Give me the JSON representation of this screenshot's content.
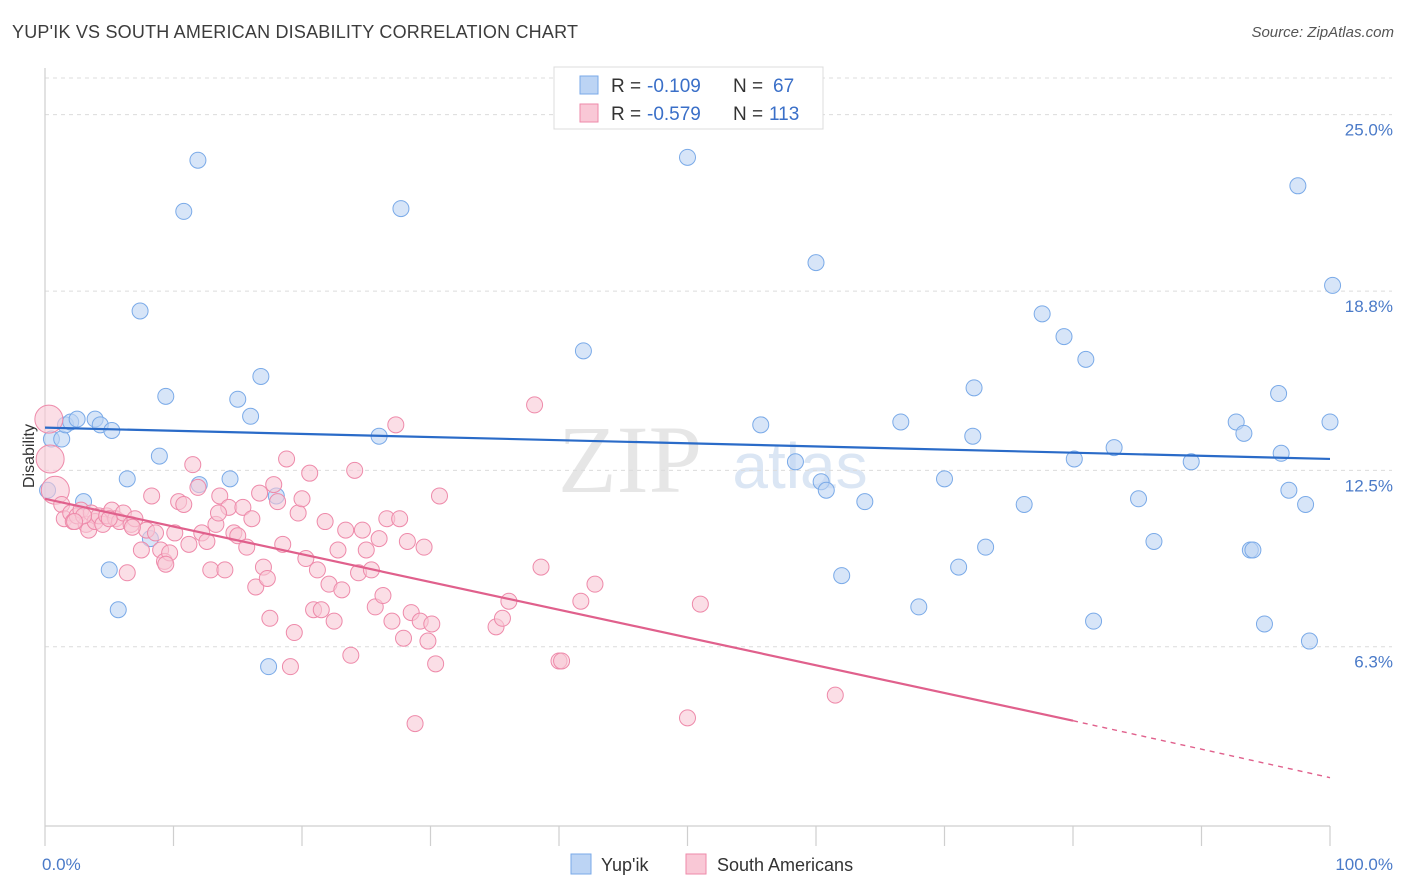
{
  "header": {
    "title": "YUP'IK VS SOUTH AMERICAN DISABILITY CORRELATION CHART",
    "source": "Source: ZipAtlas.com"
  },
  "watermark": {
    "zip": "ZIP",
    "atlas": "atlas"
  },
  "chart_data": {
    "type": "scatter",
    "title": "YUP'IK VS SOUTH AMERICAN DISABILITY CORRELATION CHART",
    "ylabel": "Disability",
    "xlabel": "",
    "xlim": [
      0,
      100
    ],
    "ylim": [
      0,
      26.5
    ],
    "x_tick_labels": [
      {
        "value": 0,
        "label": "0.0%"
      },
      {
        "value": 100,
        "label": "100.0%"
      }
    ],
    "y_tick_labels": [
      {
        "value": 6.3,
        "label": "6.3%"
      },
      {
        "value": 12.5,
        "label": "12.5%"
      },
      {
        "value": 18.8,
        "label": "18.8%"
      },
      {
        "value": 25.0,
        "label": "25.0%"
      }
    ],
    "grid": true,
    "legend_placement": "top-center",
    "series": [
      {
        "name": "Yup'ik",
        "color": "#7aaae8",
        "fill": "#bcd4f4",
        "R": "-0.109",
        "N": "67",
        "trend": {
          "x0": 0,
          "y0": 14.0,
          "x1": 100,
          "y1": 12.9
        },
        "points": [
          [
            0.2,
            11.8
          ],
          [
            0.5,
            13.6
          ],
          [
            1.3,
            13.6
          ],
          [
            1.6,
            14.1
          ],
          [
            2.0,
            14.2
          ],
          [
            2.5,
            14.3
          ],
          [
            3.0,
            11.4
          ],
          [
            3.9,
            14.3
          ],
          [
            4.3,
            14.1
          ],
          [
            5.2,
            13.9
          ],
          [
            5.0,
            9.0
          ],
          [
            5.7,
            7.6
          ],
          [
            6.4,
            12.2
          ],
          [
            7.4,
            18.1
          ],
          [
            8.2,
            10.1
          ],
          [
            8.9,
            13.0
          ],
          [
            9.4,
            15.1
          ],
          [
            10.8,
            21.6
          ],
          [
            11.9,
            23.4
          ],
          [
            12.0,
            12.0
          ],
          [
            14.4,
            12.2
          ],
          [
            15.0,
            15.0
          ],
          [
            16.0,
            14.4
          ],
          [
            16.8,
            15.8
          ],
          [
            17.4,
            5.6
          ],
          [
            18.0,
            11.6
          ],
          [
            26.0,
            13.7
          ],
          [
            27.7,
            21.7
          ],
          [
            41.9,
            16.7
          ],
          [
            50.0,
            23.5
          ],
          [
            55.7,
            14.1
          ],
          [
            58.4,
            12.8
          ],
          [
            60.0,
            19.8
          ],
          [
            60.4,
            12.1
          ],
          [
            60.8,
            11.8
          ],
          [
            62.0,
            8.8
          ],
          [
            63.8,
            11.4
          ],
          [
            66.6,
            14.2
          ],
          [
            68.0,
            7.7
          ],
          [
            70.0,
            12.2
          ],
          [
            71.1,
            9.1
          ],
          [
            72.3,
            15.4
          ],
          [
            72.2,
            13.7
          ],
          [
            73.2,
            9.8
          ],
          [
            76.2,
            11.3
          ],
          [
            77.6,
            18.0
          ],
          [
            79.3,
            17.2
          ],
          [
            80.1,
            12.9
          ],
          [
            81.0,
            16.4
          ],
          [
            81.6,
            7.2
          ],
          [
            83.2,
            13.3
          ],
          [
            85.1,
            11.5
          ],
          [
            86.3,
            10.0
          ],
          [
            89.2,
            12.8
          ],
          [
            92.7,
            14.2
          ],
          [
            93.3,
            13.8
          ],
          [
            93.8,
            9.7
          ],
          [
            94.0,
            9.7
          ],
          [
            94.9,
            7.1
          ],
          [
            96.0,
            15.2
          ],
          [
            96.2,
            13.1
          ],
          [
            96.8,
            11.8
          ],
          [
            97.5,
            22.5
          ],
          [
            98.1,
            11.3
          ],
          [
            98.4,
            6.5
          ],
          [
            100.0,
            14.2
          ],
          [
            100.2,
            19.0
          ]
        ]
      },
      {
        "name": "South Americans",
        "color": "#ee8aaa",
        "fill": "#f9c8d6",
        "R": "-0.579",
        "N": "113",
        "trend": {
          "x0": 0,
          "y0": 11.5,
          "x1": 80,
          "y1": 3.7,
          "dash_x1": 100,
          "dash_y1": 1.7
        },
        "points": [
          [
            0.3,
            14.3
          ],
          [
            0.4,
            12.9
          ],
          [
            0.8,
            11.8
          ],
          [
            1.3,
            11.3
          ],
          [
            1.5,
            10.8
          ],
          [
            2.0,
            11.0
          ],
          [
            2.2,
            10.7
          ],
          [
            2.5,
            10.9
          ],
          [
            2.8,
            11.1
          ],
          [
            3.2,
            10.6
          ],
          [
            3.4,
            10.4
          ],
          [
            3.6,
            11.0
          ],
          [
            3.9,
            10.7
          ],
          [
            4.2,
            10.9
          ],
          [
            4.5,
            10.6
          ],
          [
            4.8,
            10.9
          ],
          [
            5.2,
            11.1
          ],
          [
            5.5,
            10.8
          ],
          [
            5.8,
            10.7
          ],
          [
            6.1,
            11.0
          ],
          [
            6.4,
            8.9
          ],
          [
            6.7,
            10.6
          ],
          [
            7.0,
            10.8
          ],
          [
            7.5,
            9.7
          ],
          [
            7.9,
            10.4
          ],
          [
            8.3,
            11.6
          ],
          [
            8.6,
            10.3
          ],
          [
            9.0,
            9.7
          ],
          [
            9.3,
            9.3
          ],
          [
            9.7,
            9.6
          ],
          [
            10.1,
            10.3
          ],
          [
            10.4,
            11.4
          ],
          [
            10.8,
            11.3
          ],
          [
            11.2,
            9.9
          ],
          [
            11.5,
            12.7
          ],
          [
            11.9,
            11.9
          ],
          [
            12.2,
            10.3
          ],
          [
            12.6,
            10.0
          ],
          [
            12.9,
            9.0
          ],
          [
            13.3,
            10.6
          ],
          [
            13.6,
            11.6
          ],
          [
            14.0,
            9.0
          ],
          [
            14.3,
            11.2
          ],
          [
            14.7,
            10.3
          ],
          [
            15.0,
            10.2
          ],
          [
            15.4,
            11.2
          ],
          [
            15.7,
            9.8
          ],
          [
            16.1,
            10.8
          ],
          [
            16.4,
            8.4
          ],
          [
            16.7,
            11.7
          ],
          [
            17.0,
            9.1
          ],
          [
            17.3,
            8.7
          ],
          [
            17.5,
            7.3
          ],
          [
            17.8,
            12.0
          ],
          [
            18.1,
            11.4
          ],
          [
            18.5,
            9.9
          ],
          [
            18.8,
            12.9
          ],
          [
            19.1,
            5.6
          ],
          [
            19.4,
            6.8
          ],
          [
            19.7,
            11.0
          ],
          [
            20.0,
            11.5
          ],
          [
            20.3,
            9.4
          ],
          [
            20.6,
            12.4
          ],
          [
            20.9,
            7.6
          ],
          [
            21.2,
            9.0
          ],
          [
            21.5,
            7.6
          ],
          [
            21.8,
            10.7
          ],
          [
            22.1,
            8.5
          ],
          [
            22.5,
            7.2
          ],
          [
            22.8,
            9.7
          ],
          [
            23.1,
            8.3
          ],
          [
            23.4,
            10.4
          ],
          [
            23.8,
            6.0
          ],
          [
            24.1,
            12.5
          ],
          [
            24.4,
            8.9
          ],
          [
            24.7,
            10.4
          ],
          [
            25.0,
            9.7
          ],
          [
            25.4,
            9.0
          ],
          [
            25.7,
            7.7
          ],
          [
            26.0,
            10.1
          ],
          [
            26.3,
            8.1
          ],
          [
            26.6,
            10.8
          ],
          [
            27.0,
            7.2
          ],
          [
            27.3,
            14.1
          ],
          [
            27.6,
            10.8
          ],
          [
            27.9,
            6.6
          ],
          [
            28.2,
            10.0
          ],
          [
            28.5,
            7.5
          ],
          [
            28.8,
            3.6
          ],
          [
            29.2,
            7.2
          ],
          [
            29.5,
            9.8
          ],
          [
            29.8,
            6.5
          ],
          [
            30.1,
            7.1
          ],
          [
            30.4,
            5.7
          ],
          [
            30.7,
            11.6
          ],
          [
            35.1,
            7.0
          ],
          [
            35.6,
            7.3
          ],
          [
            36.1,
            7.9
          ],
          [
            38.1,
            14.8
          ],
          [
            38.6,
            9.1
          ],
          [
            40.0,
            5.8
          ],
          [
            40.2,
            5.8
          ],
          [
            41.7,
            7.9
          ],
          [
            42.8,
            8.5
          ],
          [
            50.0,
            3.8
          ],
          [
            51.0,
            7.8
          ],
          [
            61.5,
            4.6
          ],
          [
            13.5,
            11.0
          ],
          [
            5.0,
            10.8
          ],
          [
            3.0,
            10.9
          ],
          [
            2.3,
            10.7
          ],
          [
            6.8,
            10.5
          ],
          [
            9.4,
            9.2
          ]
        ]
      }
    ]
  }
}
